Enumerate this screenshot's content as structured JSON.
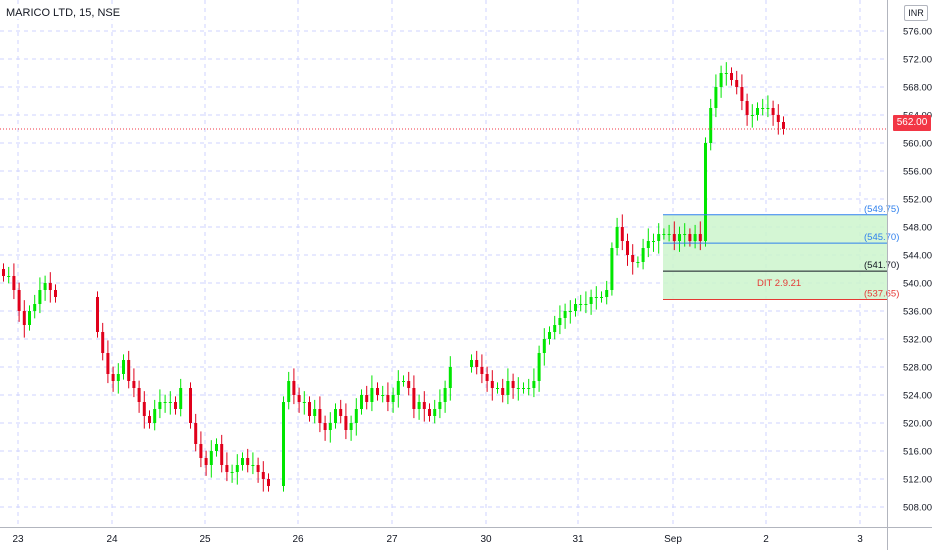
{
  "header": {
    "symbol": "MARICO LTD, 15, NSE",
    "currency": "INR",
    "last_price": "562.00"
  },
  "colors": {
    "up": "#00e600",
    "down": "#e0001b",
    "grid": "#cfd3ff",
    "zone_fill": "#ccf5cc",
    "blue_level": "#2f80ed",
    "black_level": "#131722",
    "red_level": "#e53935",
    "last_price_line": "#f23645"
  },
  "chart_data": {
    "type": "candlestick",
    "title": "",
    "ylim": [
      506,
      578
    ],
    "y_ticks": [
      "508.00",
      "512.00",
      "516.00",
      "520.00",
      "524.00",
      "528.00",
      "532.00",
      "536.00",
      "540.00",
      "544.00",
      "548.00",
      "552.00",
      "556.00",
      "560.00",
      "564.00",
      "568.00",
      "572.00",
      "576.00"
    ],
    "x_ticks": [
      "23",
      "24",
      "25",
      "26",
      "27",
      "30",
      "31",
      "Sep",
      "2",
      "3"
    ],
    "levels": [
      {
        "label": "(549.75)",
        "value": 549.75,
        "color": "blue"
      },
      {
        "label": "(545.70)",
        "value": 545.7,
        "color": "blue"
      },
      {
        "label": "(541.70)",
        "value": 541.7,
        "color": "black"
      },
      {
        "label": "(537.65)",
        "value": 537.65,
        "color": "red"
      }
    ],
    "zone": {
      "top": 549.75,
      "bottom": 537.65
    },
    "annotation": "DIT 2.9.21",
    "last_price": 562.0,
    "session_closes": [
      [
        541,
        541,
        539,
        536,
        534,
        536,
        537,
        539,
        540,
        539,
        538
      ],
      [
        533,
        530,
        527,
        526,
        527,
        529,
        526,
        525,
        523,
        521,
        520,
        522,
        523,
        523,
        523,
        522,
        525
      ],
      [
        520,
        517,
        515,
        514,
        516,
        517,
        514,
        513,
        513,
        514,
        515,
        514,
        514,
        513,
        512,
        511
      ],
      [
        523,
        526,
        524,
        523,
        523,
        521,
        522,
        520,
        519,
        520,
        522,
        521,
        519,
        520,
        522,
        524,
        523,
        525
      ],
      [
        524,
        524,
        523,
        524,
        526,
        526,
        525,
        522,
        523,
        522,
        521,
        522,
        523,
        525,
        528
      ],
      [
        529,
        528,
        527,
        526,
        525,
        525,
        524,
        526,
        525,
        525,
        525,
        525,
        526,
        530,
        532,
        533,
        534,
        535,
        536,
        536,
        537,
        537,
        537,
        538,
        538,
        538,
        539
      ],
      [
        545,
        548,
        546,
        544,
        543,
        543,
        545,
        546,
        546,
        547,
        547,
        547,
        546,
        547,
        547,
        546,
        547,
        546
      ],
      [
        560,
        565,
        568,
        570,
        570,
        569,
        568,
        566,
        564,
        564,
        565,
        565,
        565,
        564,
        563,
        562
      ]
    ]
  }
}
